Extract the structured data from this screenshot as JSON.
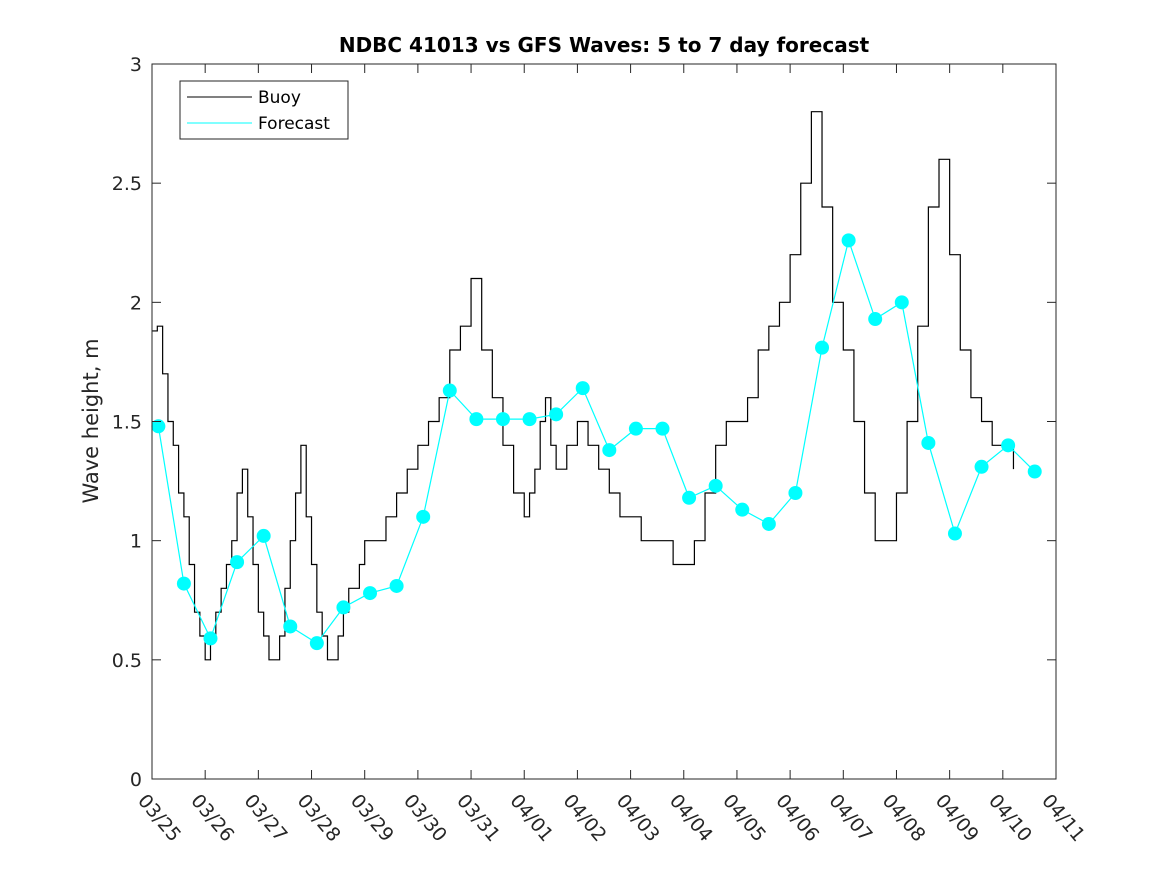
{
  "chart_data": {
    "type": "line",
    "title": "NDBC 41013 vs GFS Waves: 5 to 7 day forecast",
    "xlabel": "",
    "ylabel": "Wave height, m",
    "xlim": [
      0,
      17
    ],
    "ylim": [
      0,
      3
    ],
    "yticks": [
      0,
      0.5,
      1,
      1.5,
      2,
      2.5,
      3
    ],
    "ytick_labels": [
      "0",
      "0.5",
      "1",
      "1.5",
      "2",
      "2.5",
      "3"
    ],
    "xtick_labels": [
      "03/25",
      "03/26",
      "03/27",
      "03/28",
      "03/29",
      "03/30",
      "03/31",
      "04/01",
      "04/02",
      "04/03",
      "04/04",
      "04/05",
      "04/06",
      "04/07",
      "04/08",
      "04/09",
      "04/10",
      "04/11"
    ],
    "legend": {
      "position": "top-left",
      "entries": [
        "Buoy",
        "Forecast"
      ]
    },
    "colors": {
      "buoy": "#000000",
      "forecast": "#00ffff",
      "axes": "#262626"
    },
    "series": [
      {
        "name": "Buoy",
        "x": [
          0,
          0.1,
          0.2,
          0.3,
          0.4,
          0.5,
          0.6,
          0.7,
          0.8,
          0.9,
          1.0,
          1.1,
          1.2,
          1.3,
          1.4,
          1.5,
          1.6,
          1.7,
          1.8,
          1.9,
          2.0,
          2.1,
          2.2,
          2.3,
          2.4,
          2.5,
          2.6,
          2.7,
          2.8,
          2.9,
          3.0,
          3.1,
          3.2,
          3.3,
          3.4,
          3.5,
          3.6,
          3.7,
          3.8,
          3.9,
          4.0,
          4.2,
          4.4,
          4.6,
          4.8,
          5.0,
          5.2,
          5.4,
          5.6,
          5.8,
          6.0,
          6.2,
          6.4,
          6.6,
          6.8,
          7.0,
          7.1,
          7.2,
          7.3,
          7.4,
          7.5,
          7.6,
          7.8,
          8.0,
          8.2,
          8.4,
          8.6,
          8.8,
          9.0,
          9.2,
          9.4,
          9.6,
          9.8,
          10.0,
          10.2,
          10.4,
          10.6,
          10.8,
          11.0,
          11.2,
          11.4,
          11.6,
          11.8,
          12.0,
          12.2,
          12.4,
          12.6,
          12.8,
          13.0,
          13.2,
          13.4,
          13.6,
          13.8,
          14.0,
          14.2,
          14.4,
          14.6,
          14.8,
          15.0,
          15.2,
          15.4,
          15.6,
          15.8,
          16.0,
          16.2
        ],
        "values": [
          1.88,
          1.9,
          1.7,
          1.5,
          1.4,
          1.2,
          1.1,
          0.9,
          0.7,
          0.6,
          0.5,
          0.6,
          0.7,
          0.8,
          0.9,
          1.0,
          1.2,
          1.3,
          1.1,
          0.9,
          0.7,
          0.6,
          0.5,
          0.5,
          0.6,
          0.8,
          1.0,
          1.2,
          1.4,
          1.1,
          0.9,
          0.7,
          0.6,
          0.5,
          0.5,
          0.6,
          0.7,
          0.8,
          0.8,
          0.9,
          1.0,
          1.0,
          1.1,
          1.2,
          1.3,
          1.4,
          1.5,
          1.6,
          1.8,
          1.9,
          2.1,
          1.8,
          1.6,
          1.4,
          1.2,
          1.1,
          1.2,
          1.3,
          1.5,
          1.6,
          1.4,
          1.3,
          1.4,
          1.5,
          1.4,
          1.3,
          1.2,
          1.1,
          1.1,
          1.0,
          1.0,
          1.0,
          0.9,
          0.9,
          1.0,
          1.2,
          1.4,
          1.5,
          1.5,
          1.6,
          1.8,
          1.9,
          2.0,
          2.2,
          2.5,
          2.8,
          2.4,
          2.0,
          1.8,
          1.5,
          1.2,
          1.0,
          1.0,
          1.2,
          1.5,
          1.9,
          2.4,
          2.6,
          2.2,
          1.8,
          1.6,
          1.5,
          1.4,
          1.4,
          1.3
        ]
      },
      {
        "name": "Forecast",
        "x": [
          0.12,
          0.6,
          1.1,
          1.6,
          2.1,
          2.6,
          3.1,
          3.6,
          4.1,
          4.6,
          5.1,
          5.6,
          6.1,
          6.6,
          7.1,
          7.6,
          8.1,
          8.6,
          9.1,
          9.6,
          10.1,
          10.6,
          11.1,
          11.6,
          12.1,
          12.6,
          13.1,
          13.6,
          14.1,
          14.6,
          15.1,
          15.6,
          16.1,
          16.6
        ],
        "values": [
          1.48,
          0.82,
          0.59,
          0.91,
          1.02,
          0.64,
          0.57,
          0.72,
          0.78,
          0.81,
          1.1,
          1.63,
          1.51,
          1.51,
          1.51,
          1.53,
          1.64,
          1.38,
          1.47,
          1.47,
          1.18,
          1.23,
          1.13,
          1.07,
          1.2,
          1.81,
          2.26,
          1.93,
          2.0,
          1.41,
          1.03,
          1.31,
          1.4,
          1.29
        ]
      }
    ]
  }
}
